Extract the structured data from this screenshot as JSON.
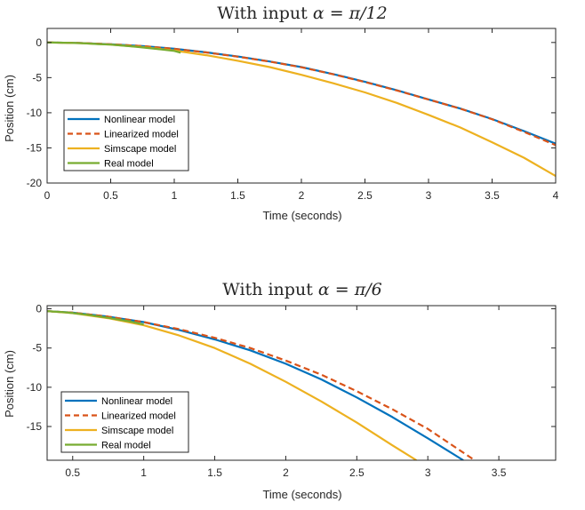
{
  "chart_data": [
    {
      "type": "line",
      "title_prefix": "With input ",
      "title_math": "α = π/12",
      "xlabel": "Time (seconds)",
      "ylabel": "Position (cm)",
      "xlim": [
        0,
        4
      ],
      "ylim": [
        -20,
        2
      ],
      "xticks": [
        0,
        0.5,
        1,
        1.5,
        2,
        2.5,
        3,
        3.5,
        4
      ],
      "xtick_labels": [
        "0",
        "0.5",
        "1",
        "1.5",
        "2",
        "2.5",
        "3",
        "3.5",
        "4"
      ],
      "yticks": [
        0,
        -5,
        -10,
        -15,
        -20
      ],
      "ytick_labels": [
        "0",
        "-5",
        "-10",
        "-15",
        "-20"
      ],
      "grid": false,
      "legend_position": "bottom-left",
      "series": [
        {
          "name": "Nonlinear model",
          "color": "#0072BD",
          "dash": "solid",
          "x": [
            0,
            0.25,
            0.5,
            0.75,
            1,
            1.25,
            1.5,
            1.75,
            2,
            2.25,
            2.5,
            2.75,
            3,
            3.25,
            3.5,
            3.75,
            4
          ],
          "y": [
            0,
            -0.06,
            -0.25,
            -0.5,
            -0.9,
            -1.4,
            -2.0,
            -2.7,
            -3.5,
            -4.5,
            -5.6,
            -6.8,
            -8.1,
            -9.4,
            -10.9,
            -12.6,
            -14.4
          ]
        },
        {
          "name": "Linearized model",
          "color": "#D95319",
          "dash": "dashed",
          "x": [
            0,
            0.25,
            0.5,
            0.75,
            1,
            1.25,
            1.5,
            1.75,
            2,
            2.25,
            2.5,
            2.75,
            3,
            3.25,
            3.5,
            3.75,
            4
          ],
          "y": [
            0,
            -0.06,
            -0.25,
            -0.51,
            -0.91,
            -1.41,
            -2.02,
            -2.72,
            -3.52,
            -4.52,
            -5.62,
            -6.82,
            -8.12,
            -9.42,
            -10.92,
            -12.72,
            -14.62
          ]
        },
        {
          "name": "Simscape model",
          "color": "#EDB120",
          "dash": "solid",
          "x": [
            0,
            0.25,
            0.5,
            0.75,
            1,
            1.25,
            1.5,
            1.75,
            2,
            2.25,
            2.5,
            2.75,
            3,
            3.25,
            3.5,
            3.75,
            4
          ],
          "y": [
            0,
            -0.08,
            -0.3,
            -0.65,
            -1.15,
            -1.8,
            -2.6,
            -3.5,
            -4.6,
            -5.8,
            -7.1,
            -8.6,
            -10.3,
            -12.1,
            -14.2,
            -16.4,
            -19.0
          ]
        },
        {
          "name": "Real model",
          "color": "#77AC30",
          "dash": "solid",
          "x": [
            0,
            0.1,
            0.2,
            0.3,
            0.4,
            0.5,
            0.6,
            0.7,
            0.8,
            0.9,
            1.0,
            1.05
          ],
          "y": [
            0,
            -0.02,
            -0.06,
            -0.12,
            -0.22,
            -0.3,
            -0.45,
            -0.6,
            -0.8,
            -1.0,
            -1.2,
            -1.45
          ]
        }
      ]
    },
    {
      "type": "line",
      "title_prefix": "With input ",
      "title_math": "α = π/6",
      "xlabel": "Time (seconds)",
      "ylabel": "Position (cm)",
      "xlim": [
        0.32,
        3.9
      ],
      "ylim": [
        -19.3,
        0.4
      ],
      "xticks": [
        0.5,
        1,
        1.5,
        2,
        2.5,
        3,
        3.5
      ],
      "xtick_labels": [
        "0.5",
        "1",
        "1.5",
        "2",
        "2.5",
        "3",
        "3.5"
      ],
      "yticks": [
        0,
        -5,
        -10,
        -15
      ],
      "ytick_labels": [
        "0",
        "-5",
        "-10",
        "-15"
      ],
      "grid": false,
      "legend_position": "bottom-left",
      "series": [
        {
          "name": "Nonlinear model",
          "color": "#0072BD",
          "dash": "solid",
          "x": [
            0.32,
            0.5,
            0.75,
            1.0,
            1.25,
            1.5,
            1.75,
            2.0,
            2.25,
            2.5,
            2.75,
            3.0,
            3.25
          ],
          "y": [
            -0.3,
            -0.5,
            -1.0,
            -1.7,
            -2.7,
            -3.9,
            -5.3,
            -7.0,
            -9.0,
            -11.3,
            -13.8,
            -16.5,
            -19.3
          ]
        },
        {
          "name": "Linearized model",
          "color": "#D95319",
          "dash": "dashed",
          "x": [
            0.32,
            0.5,
            0.75,
            1.0,
            1.25,
            1.5,
            1.75,
            2.0,
            2.25,
            2.5,
            2.75,
            3.0,
            3.33
          ],
          "y": [
            -0.3,
            -0.5,
            -1.0,
            -1.7,
            -2.6,
            -3.7,
            -5.0,
            -6.6,
            -8.4,
            -10.5,
            -12.8,
            -15.3,
            -19.3
          ]
        },
        {
          "name": "Simscape model",
          "color": "#EDB120",
          "dash": "solid",
          "x": [
            0.32,
            0.5,
            0.75,
            1.0,
            1.25,
            1.5,
            1.75,
            2.0,
            2.25,
            2.5,
            2.75,
            2.92
          ],
          "y": [
            -0.3,
            -0.55,
            -1.2,
            -2.1,
            -3.4,
            -5.0,
            -7.0,
            -9.3,
            -11.8,
            -14.5,
            -17.4,
            -19.3
          ]
        },
        {
          "name": "Real model",
          "color": "#77AC30",
          "dash": "solid",
          "x": [
            0.32,
            0.45,
            0.6,
            0.75,
            0.9,
            1.0
          ],
          "y": [
            -0.3,
            -0.45,
            -0.75,
            -1.15,
            -1.6,
            -2.0
          ]
        }
      ]
    }
  ]
}
